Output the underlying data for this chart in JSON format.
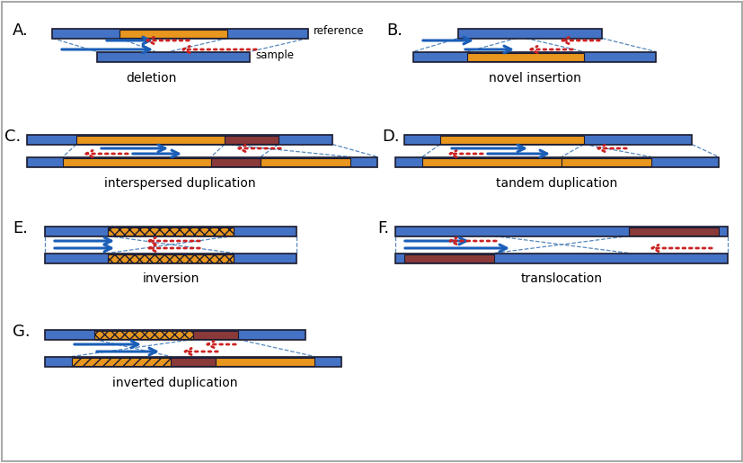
{
  "bg_color": "#ffffff",
  "blue_chr": "#4472c4",
  "orange_seg": "#e8961e",
  "brown_seg": "#8b3a3a",
  "dark_border": "#1a1a2e",
  "arrow_blue": "#1a5eb8",
  "arrow_red": "#cc2222",
  "dash_color": "#5588bb",
  "text_color": "#111111",
  "panel_labels": [
    "A",
    "B",
    "C",
    "D",
    "E",
    "F",
    "G"
  ],
  "panel_titles": [
    "deletion",
    "novel insertion",
    "interspersed duplication",
    "tandem duplication",
    "inversion",
    "translocation",
    "inverted duplication"
  ]
}
